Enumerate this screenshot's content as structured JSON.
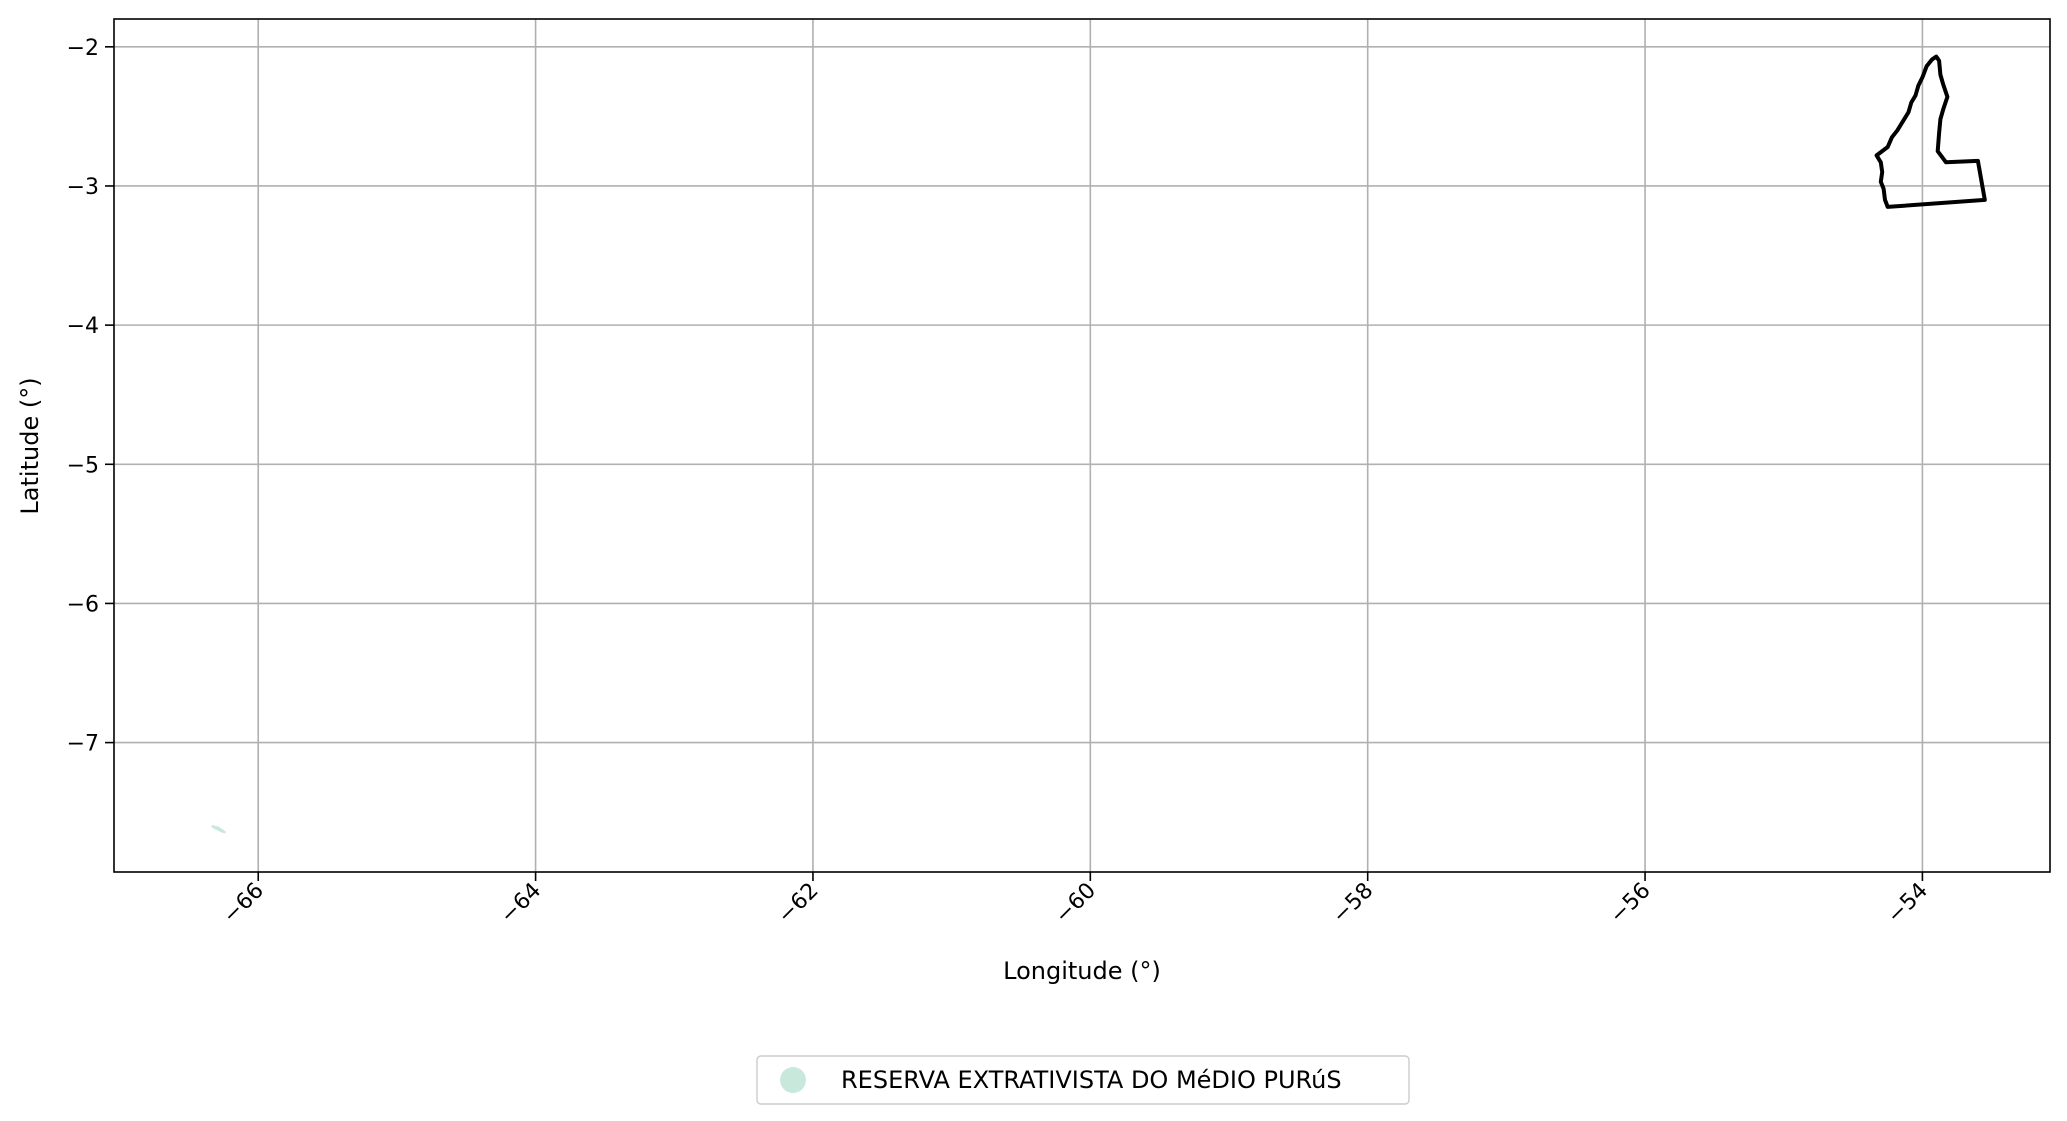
{
  "chart_data": {
    "type": "map",
    "xlabel": "Longitude (°)",
    "ylabel": "Latitude (°)",
    "xlim": [
      -67.04,
      -53.08
    ],
    "ylim": [
      -7.93,
      -1.8
    ],
    "grid": true,
    "x_ticks": [
      {
        "value": -66,
        "label": "−66"
      },
      {
        "value": -64,
        "label": "−64"
      },
      {
        "value": -62,
        "label": "−62"
      },
      {
        "value": -60,
        "label": "−60"
      },
      {
        "value": -58,
        "label": "−58"
      },
      {
        "value": -56,
        "label": "−56"
      },
      {
        "value": -54,
        "label": "−54"
      }
    ],
    "y_ticks": [
      {
        "value": -2,
        "label": "−2"
      },
      {
        "value": -3,
        "label": "−3"
      },
      {
        "value": -4,
        "label": "−4"
      },
      {
        "value": -5,
        "label": "−5"
      },
      {
        "value": -6,
        "label": "−6"
      },
      {
        "value": -7,
        "label": "−7"
      }
    ],
    "layers": [
      {
        "name": "RESERVA EXTRATIVISTA DO MéDIO PURúS",
        "kind": "filled-polygon",
        "color": "#c8e8dc",
        "coordinates": [
          [
            -66.33,
            -7.6
          ],
          [
            -66.29,
            -7.61
          ],
          [
            -66.26,
            -7.63
          ],
          [
            -66.24,
            -7.645
          ],
          [
            -66.26,
            -7.64
          ],
          [
            -66.29,
            -7.625
          ],
          [
            -66.33,
            -7.605
          ]
        ]
      },
      {
        "name": "outline",
        "kind": "outline",
        "color": "#000000",
        "coordinates": [
          [
            -53.9,
            -2.07
          ],
          [
            -53.88,
            -2.1
          ],
          [
            -53.87,
            -2.2
          ],
          [
            -53.85,
            -2.27
          ],
          [
            -53.82,
            -2.36
          ],
          [
            -53.85,
            -2.45
          ],
          [
            -53.87,
            -2.52
          ],
          [
            -53.88,
            -2.62
          ],
          [
            -53.89,
            -2.75
          ],
          [
            -53.83,
            -2.83
          ],
          [
            -53.6,
            -2.82
          ],
          [
            -53.55,
            -3.1
          ],
          [
            -54.25,
            -3.15
          ],
          [
            -54.27,
            -3.1
          ],
          [
            -54.28,
            -3.02
          ],
          [
            -54.3,
            -2.97
          ],
          [
            -54.29,
            -2.9
          ],
          [
            -54.3,
            -2.83
          ],
          [
            -54.33,
            -2.78
          ],
          [
            -54.25,
            -2.72
          ],
          [
            -54.22,
            -2.65
          ],
          [
            -54.18,
            -2.6
          ],
          [
            -54.15,
            -2.55
          ],
          [
            -54.1,
            -2.47
          ],
          [
            -54.08,
            -2.4
          ],
          [
            -54.05,
            -2.35
          ],
          [
            -54.03,
            -2.28
          ],
          [
            -54.0,
            -2.22
          ],
          [
            -53.97,
            -2.14
          ],
          [
            -53.93,
            -2.09
          ],
          [
            -53.9,
            -2.07
          ]
        ]
      }
    ],
    "legend": {
      "position": "bottom-center",
      "entries": [
        {
          "label": "RESERVA EXTRATIVISTA DO MéDIO PURúS",
          "color": "#c8e8dc"
        }
      ]
    },
    "colors": {
      "grid": "#b0b0b0",
      "axes": "#000000",
      "legend_border": "#cccccc"
    }
  }
}
